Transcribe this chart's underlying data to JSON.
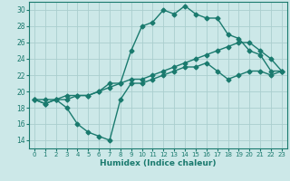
{
  "line1_x": [
    0,
    1,
    2,
    3,
    4,
    5,
    6,
    7,
    8,
    9,
    10,
    11,
    12,
    13,
    14,
    15,
    16,
    17,
    18,
    19,
    20,
    21,
    22,
    23
  ],
  "line1_y": [
    19,
    18.5,
    19,
    19,
    19.5,
    19.5,
    20,
    21,
    21,
    25,
    28,
    28.5,
    30,
    29.5,
    30.5,
    29.5,
    29,
    29,
    27,
    26.5,
    25,
    24.5,
    22.5,
    22.5
  ],
  "line2_x": [
    0,
    1,
    2,
    3,
    4,
    5,
    6,
    7,
    8,
    9,
    10,
    11,
    12,
    13,
    14,
    15,
    16,
    17,
    18,
    19,
    20,
    21,
    22,
    23
  ],
  "line2_y": [
    19,
    19,
    19,
    19.5,
    19.5,
    19.5,
    20,
    20.5,
    21,
    21.5,
    21.5,
    22,
    22.5,
    23,
    23.5,
    24,
    24.5,
    25,
    25.5,
    26,
    26,
    25,
    24,
    22.5
  ],
  "line3_x": [
    0,
    1,
    2,
    3,
    4,
    5,
    6,
    7,
    8,
    9,
    10,
    11,
    12,
    13,
    14,
    15,
    16,
    17,
    18,
    19,
    20,
    21,
    22,
    23
  ],
  "line3_y": [
    19,
    18.5,
    19,
    18,
    16,
    15,
    14.5,
    14,
    19,
    21,
    21,
    21.5,
    22,
    22.5,
    23,
    23,
    23.5,
    22.5,
    21.5,
    22,
    22.5,
    22.5,
    22,
    22.5
  ],
  "color": "#1a7a6e",
  "bg_color": "#cce8e8",
  "grid_color": "#aacece",
  "xlabel": "Humidex (Indice chaleur)",
  "xlim": [
    -0.5,
    23.5
  ],
  "ylim": [
    13,
    31
  ],
  "yticks": [
    14,
    16,
    18,
    20,
    22,
    24,
    26,
    28,
    30
  ],
  "xticks": [
    0,
    1,
    2,
    3,
    4,
    5,
    6,
    7,
    8,
    9,
    10,
    11,
    12,
    13,
    14,
    15,
    16,
    17,
    18,
    19,
    20,
    21,
    22,
    23
  ],
  "marker": "D",
  "markersize": 2.5,
  "linewidth": 1.0
}
